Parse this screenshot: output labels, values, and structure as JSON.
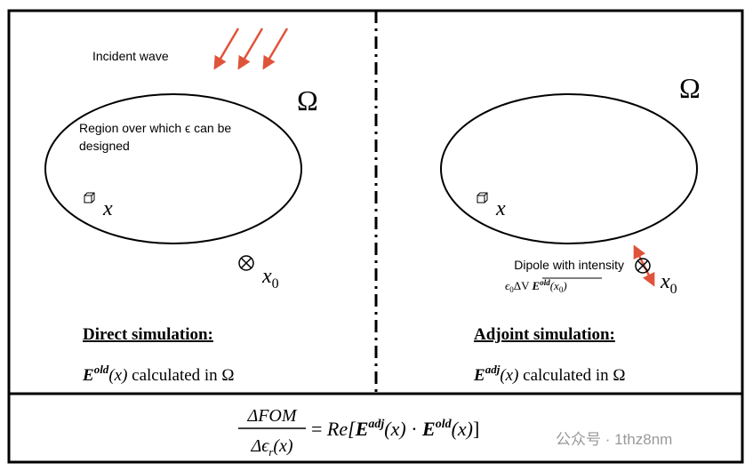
{
  "left_panel": {
    "incident_label": "Incident wave",
    "omega": "Ω",
    "region_label": [
      "Region over which ϵ can be",
      "designed"
    ],
    "point_label": "x",
    "source_label": {
      "base": "x",
      "sub": "0"
    },
    "heading": "Direct simulation:",
    "field_text": {
      "symbol": "E",
      "sup": "old",
      "arg": "(x)",
      "rest": "calculated in Ω"
    }
  },
  "right_panel": {
    "omega": "Ω",
    "point_label": "x",
    "source_label": {
      "base": "x",
      "sub": "0"
    },
    "dipole_label": {
      "line1": "Dipole with intensity",
      "prefix": "ϵ",
      "prefix_sub": "0",
      "mid": "ΔV",
      "symbol": "E",
      "sup": "old",
      "arg": "(x",
      "arg_sub": "0",
      "close": ")"
    },
    "heading": "Adjoint simulation:",
    "field_text": {
      "symbol": "E",
      "sup": "adj",
      "arg": "(x)",
      "rest": "calculated in Ω"
    }
  },
  "formula": {
    "numerator": "ΔFOM",
    "denominator": {
      "base": "Δϵ",
      "sub": "r",
      "arg": "(x)"
    },
    "equals": "=",
    "open": "Re[",
    "term1": {
      "symbol": "E",
      "sup": "adj",
      "arg": "(x)"
    },
    "dot": "·",
    "term2": {
      "symbol": "E",
      "sup": "old",
      "arg": "(x)"
    },
    "close": "]"
  },
  "watermark": "公众号 · 1thz8nm"
}
